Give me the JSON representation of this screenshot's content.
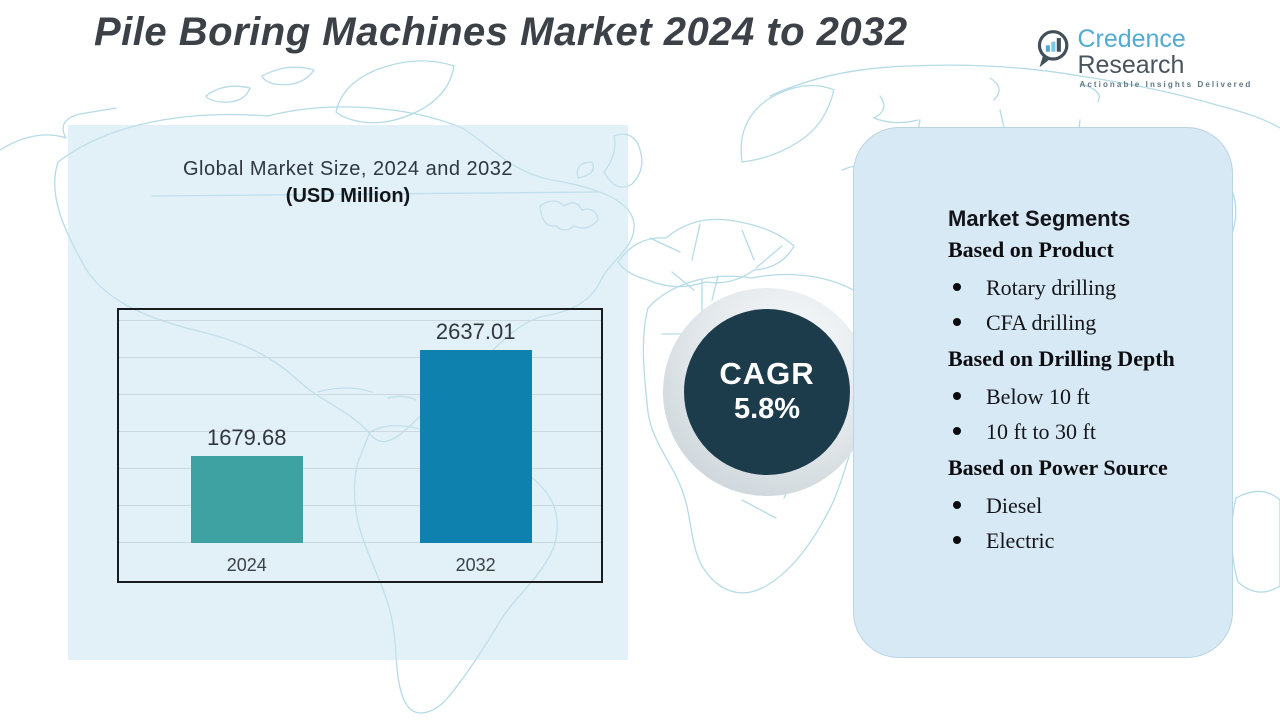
{
  "header": {
    "title": "Pile Boring Machines Market 2024 to 2032",
    "logo": {
      "brand": "Credence",
      "brand2": "Research",
      "tagline": "Actionable Insights Delivered"
    }
  },
  "chart_card": {
    "heading": "Global Market Size, 2024 and 2032",
    "subheading": "(USD Million)"
  },
  "chart_data": {
    "type": "bar",
    "title": "Global Market Size, 2024 and 2032",
    "subtitle": "(USD Million)",
    "units": "USD Million",
    "categories": [
      "2024",
      "2032"
    ],
    "values": [
      1679.68,
      2637.01
    ],
    "colors": [
      "#3ea1a2",
      "#0f81ae"
    ],
    "ylim": [
      900,
      2900
    ],
    "grid": true,
    "gridline_count": 7,
    "legend": false
  },
  "cagr_badge": {
    "label": "CAGR",
    "value": "5.8%"
  },
  "segments_panel": {
    "heading": "Market Segments",
    "groups": [
      {
        "title": "Based on Product",
        "items": [
          "Rotary drilling",
          "CFA drilling"
        ]
      },
      {
        "title": "Based on Drilling Depth",
        "items": [
          "Below 10 ft",
          "10 ft to 30 ft"
        ]
      },
      {
        "title": "Based on Power Source",
        "items": [
          "Diesel",
          "Electric"
        ]
      }
    ]
  },
  "colors": {
    "bar_2024": "#3ea1a2",
    "bar_2032": "#0f81ae",
    "cagr_circle": "#1c3c4c",
    "panel_bg": "#d7e9f4",
    "card_bg": "#e7f1f8",
    "map_stroke": "#b4dbe7",
    "title_text": "#3b4147"
  }
}
